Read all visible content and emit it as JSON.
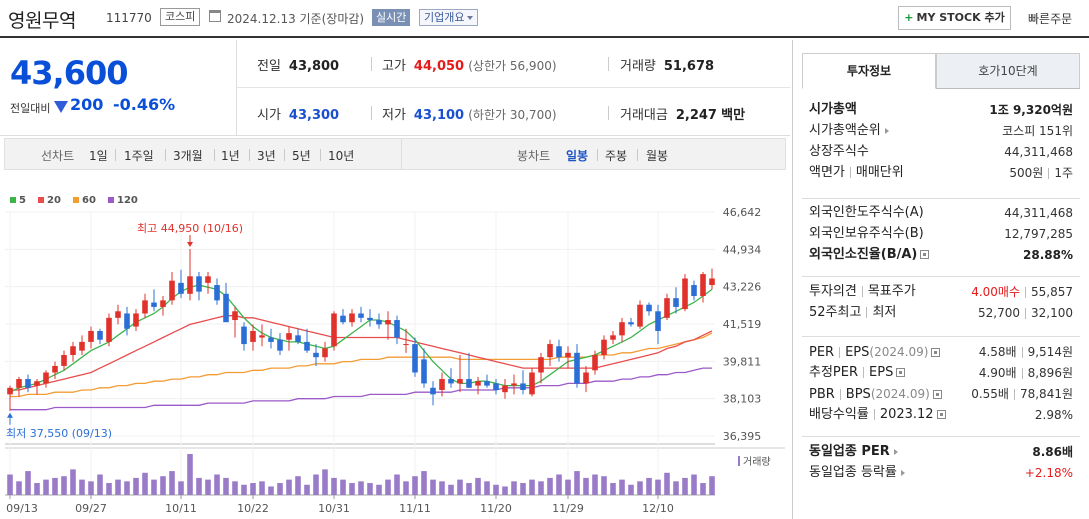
{
  "header": {
    "stock_name": "영원무역",
    "stock_code": "111770",
    "market": "코스피",
    "date_text": "2024.12.13 기준(장마감)",
    "realtime_label": "실시간",
    "company_info_label": "기업개요",
    "my_stock_label": "MY STOCK 추가",
    "quick_order_label": "빠른주문"
  },
  "price": {
    "current": "43,600",
    "change_label": "전일대비",
    "change": "200",
    "change_pct": "-0.46%",
    "prev_close_label": "전일",
    "prev_close": "43,800",
    "high_label": "고가",
    "high": "44,050",
    "upper_limit": "(상한가 56,900)",
    "volume_label": "거래량",
    "volume": "51,678",
    "open_label": "시가",
    "open": "43,300",
    "low_label": "저가",
    "low": "43,100",
    "lower_limit": "(하한가 30,700)",
    "amount_label": "거래대금",
    "amount": "2,247",
    "amount_unit": "백만"
  },
  "period_bar": {
    "line_label": "선차트",
    "line_periods": [
      "1일",
      "1주일",
      "3개월",
      "1년",
      "3년",
      "5년",
      "10년"
    ],
    "candle_label": "봉차트",
    "candle_periods": [
      "일봉",
      "주봉",
      "월봉"
    ],
    "candle_selected": "일봉"
  },
  "chart_data": {
    "type": "candlestick",
    "legend": [
      {
        "name": "5",
        "color": "#3cb44b"
      },
      {
        "name": "20",
        "color": "#e84c4c"
      },
      {
        "name": "60",
        "color": "#f39c34"
      },
      {
        "name": "120",
        "color": "#9b59c9"
      }
    ],
    "y_ticks": [
      "46,642",
      "44,934",
      "43,226",
      "41,519",
      "39,811",
      "38,103",
      "36,395"
    ],
    "ylim": [
      36395,
      46642
    ],
    "x_ticks": [
      "09/13",
      "09/27",
      "10/11",
      "10/22",
      "10/31",
      "11/11",
      "11/20",
      "11/29",
      "12/10"
    ],
    "volume_label": "거래량",
    "max_annotation": "최고 44,950 (10/16)",
    "min_annotation": "최저 37,550 (09/13)",
    "candles": [
      {
        "o": 38300,
        "h": 38700,
        "l": 37550,
        "c": 38600
      },
      {
        "o": 38600,
        "h": 39100,
        "l": 38200,
        "c": 39000
      },
      {
        "o": 39000,
        "h": 39200,
        "l": 38400,
        "c": 38600
      },
      {
        "o": 38700,
        "h": 39000,
        "l": 38300,
        "c": 38900
      },
      {
        "o": 38800,
        "h": 39400,
        "l": 38600,
        "c": 39300
      },
      {
        "o": 39300,
        "h": 39800,
        "l": 39000,
        "c": 39600
      },
      {
        "o": 39600,
        "h": 40300,
        "l": 39400,
        "c": 40100
      },
      {
        "o": 40100,
        "h": 40700,
        "l": 39800,
        "c": 40500
      },
      {
        "o": 40300,
        "h": 41000,
        "l": 40100,
        "c": 40700
      },
      {
        "o": 40700,
        "h": 41400,
        "l": 40400,
        "c": 41200
      },
      {
        "o": 41200,
        "h": 41300,
        "l": 40600,
        "c": 40800
      },
      {
        "o": 40700,
        "h": 42000,
        "l": 40500,
        "c": 41800
      },
      {
        "o": 41800,
        "h": 42400,
        "l": 41500,
        "c": 42100
      },
      {
        "o": 42000,
        "h": 42300,
        "l": 41000,
        "c": 41300
      },
      {
        "o": 41400,
        "h": 42200,
        "l": 41200,
        "c": 42000
      },
      {
        "o": 42000,
        "h": 42900,
        "l": 41800,
        "c": 42600
      },
      {
        "o": 42500,
        "h": 43100,
        "l": 42100,
        "c": 42300
      },
      {
        "o": 42300,
        "h": 42800,
        "l": 41900,
        "c": 42600
      },
      {
        "o": 42600,
        "h": 43900,
        "l": 42400,
        "c": 43500
      },
      {
        "o": 43400,
        "h": 44000,
        "l": 42700,
        "c": 42900
      },
      {
        "o": 42900,
        "h": 44950,
        "l": 42600,
        "c": 43700
      },
      {
        "o": 43700,
        "h": 43900,
        "l": 42600,
        "c": 43000
      },
      {
        "o": 43400,
        "h": 43900,
        "l": 42900,
        "c": 43700
      },
      {
        "o": 43300,
        "h": 43600,
        "l": 42400,
        "c": 42600
      },
      {
        "o": 42900,
        "h": 43400,
        "l": 41700,
        "c": 41600
      },
      {
        "o": 41700,
        "h": 42300,
        "l": 40900,
        "c": 42100
      },
      {
        "o": 41400,
        "h": 41600,
        "l": 40300,
        "c": 40600
      },
      {
        "o": 40700,
        "h": 41500,
        "l": 40300,
        "c": 41200
      },
      {
        "o": 40900,
        "h": 41500,
        "l": 40500,
        "c": 41000
      },
      {
        "o": 40900,
        "h": 41300,
        "l": 40400,
        "c": 40700
      },
      {
        "o": 40800,
        "h": 41100,
        "l": 40100,
        "c": 40300
      },
      {
        "o": 40800,
        "h": 41400,
        "l": 40300,
        "c": 41100
      },
      {
        "o": 41000,
        "h": 41300,
        "l": 40600,
        "c": 40700
      },
      {
        "o": 40700,
        "h": 41300,
        "l": 40200,
        "c": 40300
      },
      {
        "o": 40200,
        "h": 40600,
        "l": 39600,
        "c": 40000
      },
      {
        "o": 40000,
        "h": 40700,
        "l": 39800,
        "c": 40400
      },
      {
        "o": 40500,
        "h": 42100,
        "l": 40300,
        "c": 42000
      },
      {
        "o": 41900,
        "h": 42200,
        "l": 41500,
        "c": 41600
      },
      {
        "o": 41600,
        "h": 42200,
        "l": 41400,
        "c": 42000
      },
      {
        "o": 42000,
        "h": 42300,
        "l": 41600,
        "c": 41800
      },
      {
        "o": 41800,
        "h": 42200,
        "l": 41400,
        "c": 41700
      },
      {
        "o": 41700,
        "h": 42000,
        "l": 41300,
        "c": 41500
      },
      {
        "o": 41500,
        "h": 42100,
        "l": 40800,
        "c": 41700
      },
      {
        "o": 41700,
        "h": 41900,
        "l": 40600,
        "c": 40900
      },
      {
        "o": 40600,
        "h": 41300,
        "l": 40200,
        "c": 40600
      },
      {
        "o": 40600,
        "h": 40900,
        "l": 39100,
        "c": 39300
      },
      {
        "o": 39900,
        "h": 40400,
        "l": 38600,
        "c": 38800
      },
      {
        "o": 38600,
        "h": 38900,
        "l": 37800,
        "c": 38300
      },
      {
        "o": 38500,
        "h": 39300,
        "l": 38200,
        "c": 39000
      },
      {
        "o": 39000,
        "h": 39500,
        "l": 38600,
        "c": 38800
      },
      {
        "o": 38800,
        "h": 40100,
        "l": 38400,
        "c": 39000
      },
      {
        "o": 39000,
        "h": 40200,
        "l": 38600,
        "c": 38600
      },
      {
        "o": 38700,
        "h": 39100,
        "l": 38300,
        "c": 38900
      },
      {
        "o": 38900,
        "h": 39200,
        "l": 38600,
        "c": 38700
      },
      {
        "o": 38800,
        "h": 39000,
        "l": 38300,
        "c": 38500
      },
      {
        "o": 38400,
        "h": 39000,
        "l": 38100,
        "c": 38700
      },
      {
        "o": 38700,
        "h": 39200,
        "l": 38300,
        "c": 38800
      },
      {
        "o": 38800,
        "h": 39400,
        "l": 38300,
        "c": 38500
      },
      {
        "o": 38300,
        "h": 39500,
        "l": 38200,
        "c": 39300
      },
      {
        "o": 39300,
        "h": 40200,
        "l": 38800,
        "c": 40000
      },
      {
        "o": 40000,
        "h": 40800,
        "l": 39600,
        "c": 40600
      },
      {
        "o": 40500,
        "h": 40800,
        "l": 39800,
        "c": 40000
      },
      {
        "o": 40000,
        "h": 40500,
        "l": 39500,
        "c": 40200
      },
      {
        "o": 40200,
        "h": 40600,
        "l": 38600,
        "c": 38800
      },
      {
        "o": 38800,
        "h": 39600,
        "l": 38400,
        "c": 39300
      },
      {
        "o": 39400,
        "h": 40300,
        "l": 39200,
        "c": 40100
      },
      {
        "o": 40100,
        "h": 41000,
        "l": 39900,
        "c": 40800
      },
      {
        "o": 40800,
        "h": 41200,
        "l": 40600,
        "c": 41000
      },
      {
        "o": 41000,
        "h": 41800,
        "l": 40700,
        "c": 41600
      },
      {
        "o": 41600,
        "h": 41800,
        "l": 41400,
        "c": 41500
      },
      {
        "o": 41400,
        "h": 42600,
        "l": 41300,
        "c": 42400
      },
      {
        "o": 42400,
        "h": 42500,
        "l": 41900,
        "c": 42100
      },
      {
        "o": 42100,
        "h": 42400,
        "l": 40600,
        "c": 41200
      },
      {
        "o": 41800,
        "h": 42900,
        "l": 41700,
        "c": 42700
      },
      {
        "o": 42700,
        "h": 43200,
        "l": 42000,
        "c": 42300
      },
      {
        "o": 42200,
        "h": 43800,
        "l": 42100,
        "c": 43600
      },
      {
        "o": 43300,
        "h": 43500,
        "l": 42600,
        "c": 42800
      },
      {
        "o": 42800,
        "h": 43900,
        "l": 42500,
        "c": 43800
      },
      {
        "o": 43300,
        "h": 44050,
        "l": 43100,
        "c": 43600
      }
    ],
    "ma5": [
      38400,
      38600,
      38700,
      38800,
      39000,
      39200,
      39400,
      39700,
      40000,
      40300,
      40500,
      40700,
      41000,
      41300,
      41600,
      41800,
      42000,
      42300,
      42700,
      43000,
      43200,
      43300,
      43200,
      43100,
      42800,
      42300,
      41800,
      41400,
      41100,
      40900,
      40800,
      40700,
      40700,
      40600,
      40500,
      40400,
      40500,
      40800,
      41100,
      41400,
      41700,
      41700,
      41600,
      41400,
      41200,
      40800,
      40300,
      39800,
      39400,
      39000,
      38800,
      38800,
      38900,
      38900,
      38800,
      38700,
      38700,
      38700,
      38700,
      38900,
      39200,
      39500,
      39800,
      39900,
      40000,
      40100,
      40300,
      40500,
      40700,
      40900,
      41200,
      41500,
      41700,
      41900,
      42100,
      42300,
      42500,
      42800,
      43100
    ],
    "ma20": [
      38500,
      38500,
      38600,
      38700,
      38800,
      38900,
      39000,
      39100,
      39200,
      39300,
      39500,
      39700,
      39900,
      40100,
      40300,
      40500,
      40700,
      40900,
      41100,
      41300,
      41500,
      41600,
      41700,
      41800,
      41900,
      41900,
      41800,
      41800,
      41700,
      41600,
      41500,
      41400,
      41300,
      41200,
      41100,
      41000,
      40900,
      40900,
      40900,
      40900,
      40900,
      40900,
      40900,
      40900,
      40800,
      40700,
      40600,
      40500,
      40400,
      40300,
      40200,
      40100,
      40000,
      39900,
      39800,
      39700,
      39600,
      39500,
      39500,
      39500,
      39500,
      39500,
      39500,
      39500,
      39500,
      39500,
      39600,
      39700,
      39800,
      39900,
      40000,
      40100,
      40200,
      40400,
      40500,
      40700,
      40800,
      41000,
      41200
    ],
    "ma60": [
      38200,
      38200,
      38300,
      38300,
      38300,
      38400,
      38400,
      38400,
      38500,
      38500,
      38600,
      38600,
      38700,
      38700,
      38800,
      38800,
      38900,
      38900,
      39000,
      39000,
      39100,
      39100,
      39200,
      39200,
      39300,
      39300,
      39300,
      39400,
      39400,
      39500,
      39500,
      39500,
      39600,
      39600,
      39700,
      39700,
      39700,
      39800,
      39800,
      39900,
      39900,
      39900,
      40000,
      40000,
      40000,
      40000,
      40000,
      40000,
      40000,
      40000,
      39900,
      39900,
      39900,
      39900,
      39900,
      39900,
      39900,
      39900,
      39900,
      39900,
      39900,
      40000,
      40000,
      40000,
      40000,
      40100,
      40100,
      40100,
      40200,
      40200,
      40300,
      40400,
      40400,
      40500,
      40600,
      40700,
      40800,
      40900,
      41100
    ],
    "ma120": [
      37600,
      37600,
      37600,
      37600,
      37600,
      37700,
      37700,
      37700,
      37700,
      37700,
      37700,
      37700,
      37700,
      37700,
      37700,
      37700,
      37800,
      37800,
      37800,
      37800,
      37800,
      37800,
      37900,
      37900,
      37900,
      37900,
      37900,
      38000,
      38000,
      38000,
      38000,
      38000,
      38100,
      38100,
      38100,
      38100,
      38200,
      38200,
      38200,
      38200,
      38300,
      38300,
      38300,
      38300,
      38300,
      38400,
      38400,
      38400,
      38400,
      38400,
      38500,
      38500,
      38500,
      38500,
      38500,
      38600,
      38600,
      38600,
      38600,
      38700,
      38700,
      38700,
      38800,
      38800,
      38800,
      38900,
      38900,
      38900,
      39000,
      39000,
      39100,
      39100,
      39200,
      39200,
      39300,
      39300,
      39400,
      39500,
      39500
    ],
    "volumes": [
      12,
      8,
      14,
      7,
      9,
      10,
      11,
      15,
      9,
      8,
      12,
      7,
      9,
      8,
      10,
      13,
      9,
      11,
      14,
      8,
      24,
      10,
      9,
      12,
      10,
      8,
      6,
      7,
      8,
      5,
      7,
      9,
      11,
      6,
      12,
      15,
      10,
      9,
      7,
      8,
      7,
      6,
      9,
      12,
      8,
      11,
      14,
      9,
      8,
      6,
      9,
      7,
      10,
      8,
      6,
      5,
      8,
      7,
      9,
      8,
      10,
      12,
      9,
      14,
      10,
      12,
      11,
      7,
      9,
      6,
      8,
      10,
      9,
      13,
      8,
      10,
      12,
      7,
      11
    ]
  },
  "side": {
    "tab_invest": "투자정보",
    "tab_hoga": "호가10단계",
    "market_cap_label": "시가총액",
    "market_cap": "1조 9,320억원",
    "market_cap_rank_label": "시가총액순위",
    "market_cap_rank": "코스피 151위",
    "shares_label": "상장주식수",
    "shares": "44,311,468",
    "par_label": "액면가",
    "trade_unit_label": "매매단위",
    "par_value": "500원",
    "trade_unit": "1주",
    "foreign_limit_label": "외국인한도주식수(A)",
    "foreign_limit": "44,311,468",
    "foreign_hold_label": "외국인보유주식수(B)",
    "foreign_hold": "12,797,285",
    "foreign_ratio_label": "외국인소진율(B/A)",
    "foreign_ratio": "28.88%",
    "opinion_label": "투자의견",
    "target_label": "목표주가",
    "opinion": "4.00매수",
    "target": "55,857",
    "week52_high_label": "52주최고",
    "week52_low_label": "최저",
    "week52_high": "52,700",
    "week52_low": "32,100",
    "per_label": "PER",
    "eps_label": "EPS",
    "per_eps_date": "(2024.09)",
    "per": "4.58배",
    "eps": "9,514원",
    "est_per_label": "추정PER",
    "est_eps_label": "EPS",
    "est_per": "4.90배",
    "est_eps": "8,896원",
    "pbr_label": "PBR",
    "bps_label": "BPS",
    "pbr_bps_date": "(2024.09)",
    "pbr": "0.55배",
    "bps": "78,841원",
    "div_label": "배당수익률",
    "div_date": "2023.12",
    "div": "2.98%",
    "sector_per_label": "동일업종 PER",
    "sector_per": "8.86배",
    "sector_chg_label": "동일업종 등락률",
    "sector_chg": "+2.18%"
  }
}
